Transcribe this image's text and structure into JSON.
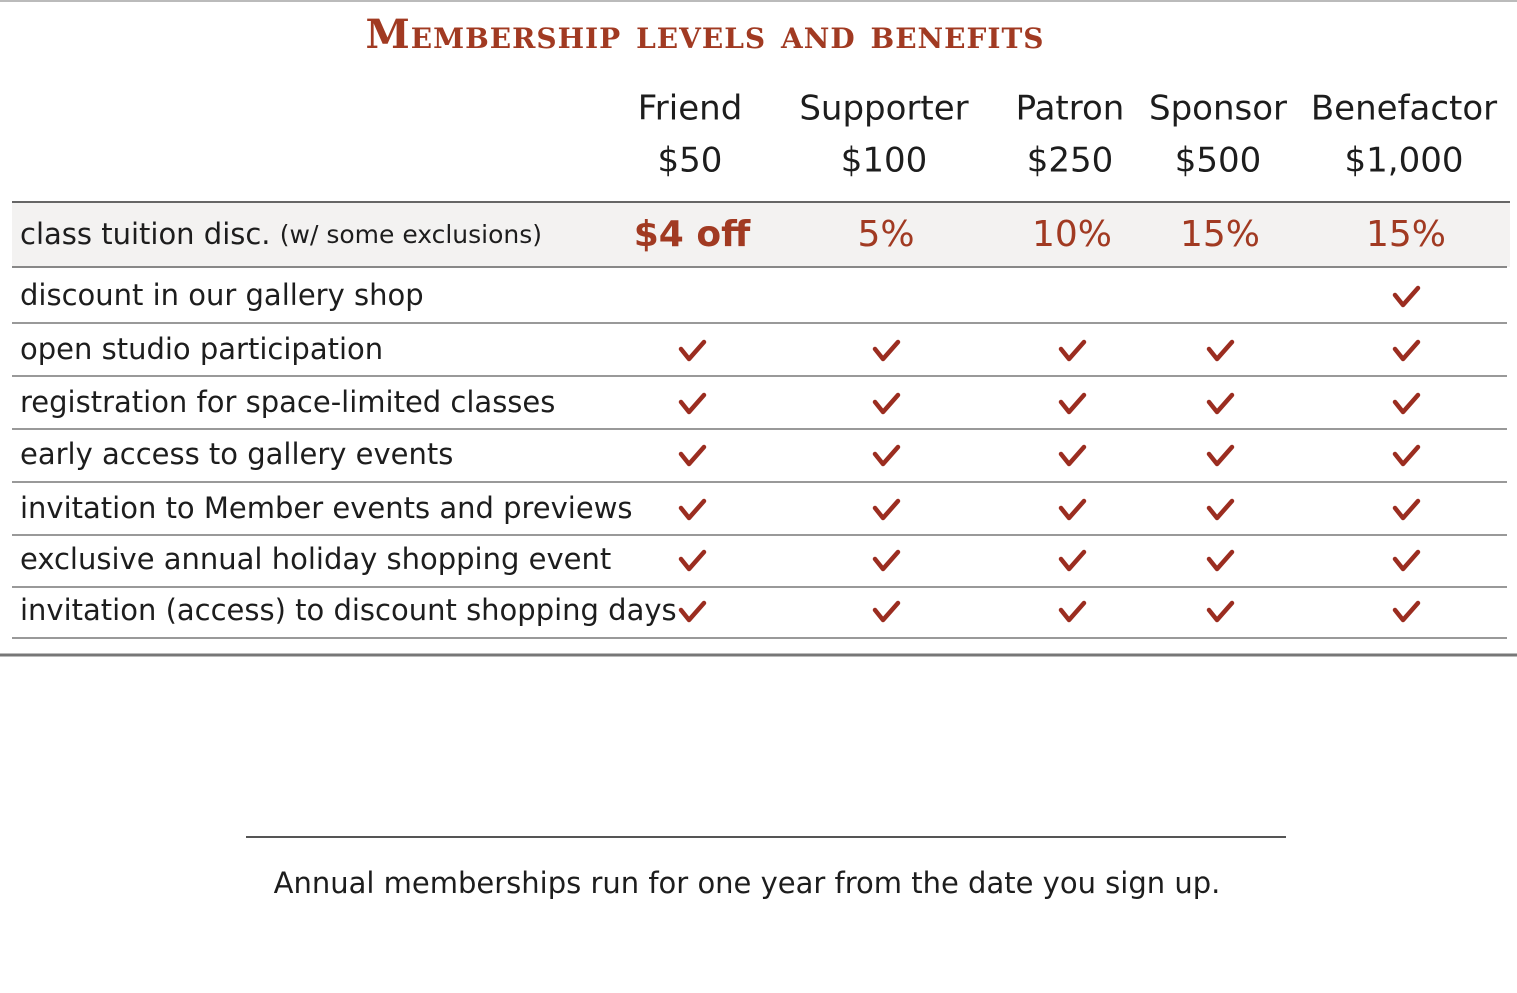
{
  "title": "Membership levels and benefits",
  "table": {
    "columns": [
      {
        "name": "Friend",
        "price": "$50"
      },
      {
        "name": "Supporter",
        "price": "$100"
      },
      {
        "name": "Patron",
        "price": "$250"
      },
      {
        "name": "Sponsor",
        "price": "$500"
      },
      {
        "name": "Benefactor",
        "price": "$1,000"
      }
    ],
    "rows": [
      {
        "label": "class tuition disc.",
        "note": "(w/ some exclusions)",
        "cells": [
          "$4 off",
          "5%",
          "10%",
          "15%",
          "15%"
        ]
      },
      {
        "label": "discount in our gallery shop",
        "cells": [
          false,
          false,
          false,
          false,
          true
        ]
      },
      {
        "label": "open studio participation",
        "cells": [
          true,
          true,
          true,
          true,
          true
        ]
      },
      {
        "label": "registration for space-limited classes",
        "cells": [
          true,
          true,
          true,
          true,
          true
        ]
      },
      {
        "label": "early access to gallery events",
        "cells": [
          true,
          true,
          true,
          true,
          true
        ]
      },
      {
        "label": "invitation to Member events and previews",
        "cells": [
          true,
          true,
          true,
          true,
          true
        ]
      },
      {
        "label": "exclusive annual holiday shopping event",
        "cells": [
          true,
          true,
          true,
          true,
          true
        ]
      },
      {
        "label": "invitation (access) to discount shopping days",
        "cells": [
          true,
          true,
          true,
          true,
          true
        ]
      }
    ]
  },
  "footer": "Annual memberships run for one year from the date you sign up."
}
